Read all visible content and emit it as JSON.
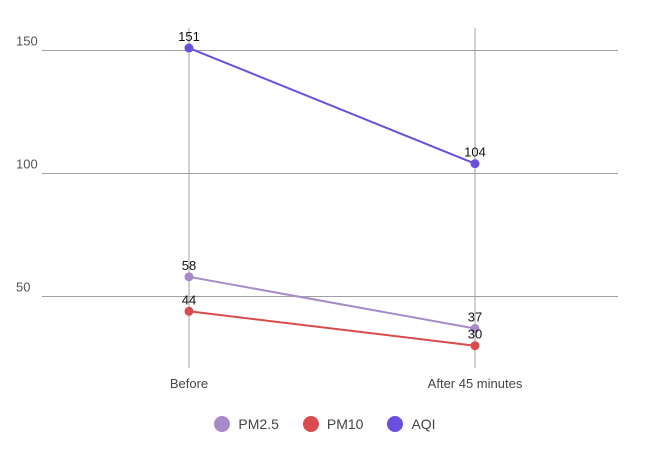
{
  "chart_data": {
    "type": "line",
    "categories": [
      "Before",
      "After 45 minutes"
    ],
    "series": [
      {
        "name": "PM2.5",
        "values": [
          58,
          37
        ],
        "color": "#a78bc9"
      },
      {
        "name": "PM10",
        "values": [
          44,
          30
        ],
        "color": "#db4b4b"
      },
      {
        "name": "AQI",
        "values": [
          151,
          104
        ],
        "color": "#6a4fdc"
      }
    ],
    "yticks": [
      50,
      100,
      150
    ],
    "ylim": [
      20,
      157
    ],
    "grid": true,
    "legend": "bottom"
  }
}
